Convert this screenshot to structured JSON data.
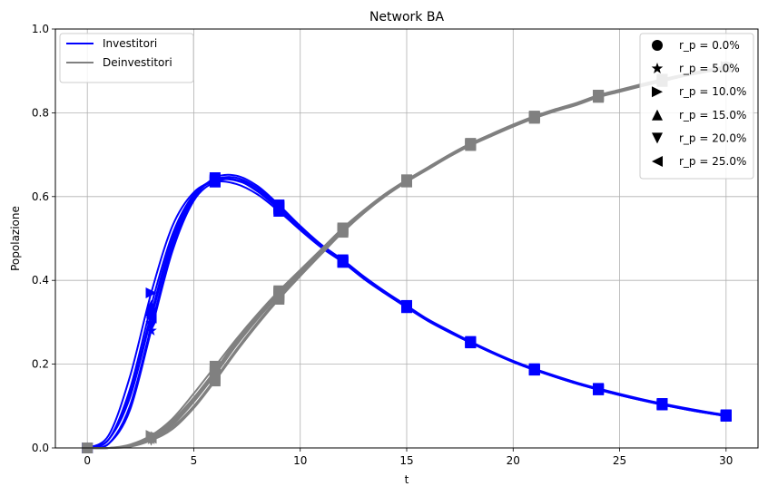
{
  "chart_data": {
    "type": "line",
    "title": "Network BA",
    "xlabel": "t",
    "ylabel": "Popolazione",
    "xlim": [
      -1.5,
      31.5
    ],
    "ylim": [
      0,
      1.0
    ],
    "xticks": [
      0,
      5,
      10,
      15,
      20,
      25,
      30
    ],
    "yticks": [
      0.0,
      0.2,
      0.4,
      0.6,
      0.8,
      1.0
    ],
    "grid": true,
    "colors": {
      "investitori": "#0000ff",
      "deinvestitori": "#808080"
    },
    "legend_lines": {
      "placement": "top-left",
      "entries": [
        {
          "label": "Investitori",
          "color": "#0000ff"
        },
        {
          "label": "Deinvestitori",
          "color": "#808080"
        }
      ]
    },
    "legend_markers": {
      "placement": "top-right",
      "entries": [
        {
          "label": "r_p = 0.0%",
          "marker": "circle"
        },
        {
          "label": "r_p = 5.0%",
          "marker": "star"
        },
        {
          "label": "r_p = 10.0%",
          "marker": "triangle-right"
        },
        {
          "label": "r_p = 15.0%",
          "marker": "triangle-up"
        },
        {
          "label": "r_p = 20.0%",
          "marker": "triangle-down"
        },
        {
          "label": "r_p = 25.0%",
          "marker": "triangle-left"
        }
      ]
    },
    "x": [
      0,
      1,
      2,
      3,
      4,
      5,
      6,
      7,
      8,
      9,
      10,
      11,
      12,
      13,
      14,
      15,
      16,
      17,
      18,
      19,
      20,
      21,
      22,
      23,
      24,
      25,
      26,
      27,
      28,
      29,
      30
    ],
    "marker_every": 3,
    "series": [
      {
        "group": "investitori",
        "marker": "circle",
        "values": [
          0.0,
          0.02,
          0.13,
          0.32,
          0.5,
          0.6,
          0.64,
          0.645,
          0.62,
          0.575,
          0.525,
          0.48,
          0.445,
          0.405,
          0.37,
          0.338,
          0.305,
          0.278,
          0.252,
          0.228,
          0.206,
          0.187,
          0.17,
          0.154,
          0.14,
          0.127,
          0.115,
          0.104,
          0.094,
          0.085,
          0.077
        ]
      },
      {
        "group": "investitori",
        "marker": "star",
        "values": [
          0.0,
          0.01,
          0.09,
          0.28,
          0.47,
          0.59,
          0.635,
          0.64,
          0.62,
          0.578,
          0.528,
          0.483,
          0.447,
          0.407,
          0.372,
          0.339,
          0.306,
          0.279,
          0.253,
          0.229,
          0.207,
          0.188,
          0.171,
          0.155,
          0.141,
          0.128,
          0.116,
          0.105,
          0.095,
          0.086,
          0.078
        ]
      },
      {
        "group": "investitori",
        "marker": "triangle-right",
        "values": [
          0.0,
          0.03,
          0.17,
          0.37,
          0.53,
          0.61,
          0.635,
          0.63,
          0.605,
          0.565,
          0.52,
          0.478,
          0.443,
          0.403,
          0.368,
          0.335,
          0.303,
          0.276,
          0.251,
          0.227,
          0.205,
          0.186,
          0.169,
          0.153,
          0.139,
          0.126,
          0.114,
          0.103,
          0.093,
          0.084,
          0.076
        ]
      },
      {
        "group": "investitori",
        "marker": "triangle-up",
        "values": [
          0.0,
          0.02,
          0.14,
          0.34,
          0.51,
          0.605,
          0.64,
          0.64,
          0.612,
          0.57,
          0.523,
          0.481,
          0.445,
          0.405,
          0.37,
          0.337,
          0.304,
          0.277,
          0.252,
          0.228,
          0.206,
          0.187,
          0.17,
          0.154,
          0.14,
          0.127,
          0.115,
          0.104,
          0.094,
          0.085,
          0.077
        ]
      },
      {
        "group": "investitori",
        "marker": "triangle-down",
        "values": [
          0.0,
          0.01,
          0.1,
          0.29,
          0.48,
          0.595,
          0.645,
          0.65,
          0.625,
          0.58,
          0.53,
          0.485,
          0.449,
          0.409,
          0.373,
          0.34,
          0.307,
          0.28,
          0.254,
          0.23,
          0.208,
          0.189,
          0.172,
          0.156,
          0.142,
          0.129,
          0.117,
          0.106,
          0.096,
          0.087,
          0.079
        ]
      },
      {
        "group": "investitori",
        "marker": "triangle-left",
        "values": [
          0.0,
          0.02,
          0.12,
          0.31,
          0.49,
          0.6,
          0.638,
          0.638,
          0.615,
          0.572,
          0.524,
          0.48,
          0.444,
          0.404,
          0.369,
          0.336,
          0.304,
          0.277,
          0.251,
          0.227,
          0.205,
          0.186,
          0.169,
          0.153,
          0.139,
          0.126,
          0.114,
          0.103,
          0.093,
          0.084,
          0.076
        ]
      },
      {
        "group": "deinvestitori",
        "marker": "circle",
        "values": [
          0.0,
          0.0,
          0.005,
          0.025,
          0.06,
          0.115,
          0.18,
          0.25,
          0.31,
          0.37,
          0.42,
          0.47,
          0.52,
          0.565,
          0.605,
          0.638,
          0.668,
          0.698,
          0.725,
          0.748,
          0.77,
          0.79,
          0.807,
          0.822,
          0.84,
          0.853,
          0.866,
          0.878,
          0.89,
          0.9,
          0.91
        ]
      },
      {
        "group": "deinvestitori",
        "marker": "star",
        "values": [
          0.0,
          0.0,
          0.004,
          0.02,
          0.05,
          0.1,
          0.165,
          0.235,
          0.3,
          0.36,
          0.415,
          0.467,
          0.518,
          0.563,
          0.603,
          0.637,
          0.667,
          0.697,
          0.724,
          0.747,
          0.769,
          0.789,
          0.806,
          0.821,
          0.839,
          0.852,
          0.865,
          0.877,
          0.889,
          0.899,
          0.909
        ]
      },
      {
        "group": "deinvestitori",
        "marker": "triangle-right",
        "values": [
          0.0,
          0.0,
          0.008,
          0.03,
          0.07,
          0.13,
          0.195,
          0.26,
          0.32,
          0.375,
          0.425,
          0.475,
          0.525,
          0.568,
          0.607,
          0.64,
          0.67,
          0.7,
          0.727,
          0.75,
          0.772,
          0.792,
          0.809,
          0.824,
          0.842,
          0.855,
          0.868,
          0.88,
          0.891,
          0.901,
          0.911
        ]
      },
      {
        "group": "deinvestitori",
        "marker": "triangle-up",
        "values": [
          0.0,
          0.0,
          0.006,
          0.027,
          0.065,
          0.12,
          0.185,
          0.255,
          0.315,
          0.372,
          0.423,
          0.472,
          0.522,
          0.566,
          0.606,
          0.639,
          0.669,
          0.699,
          0.726,
          0.749,
          0.771,
          0.791,
          0.808,
          0.823,
          0.841,
          0.854,
          0.867,
          0.879,
          0.89,
          0.9,
          0.91
        ]
      },
      {
        "group": "deinvestitori",
        "marker": "triangle-down",
        "values": [
          0.0,
          0.0,
          0.003,
          0.018,
          0.045,
          0.095,
          0.16,
          0.23,
          0.295,
          0.355,
          0.41,
          0.463,
          0.515,
          0.561,
          0.601,
          0.635,
          0.665,
          0.695,
          0.722,
          0.745,
          0.767,
          0.787,
          0.804,
          0.819,
          0.837,
          0.85,
          0.863,
          0.875,
          0.887,
          0.897,
          0.907
        ]
      },
      {
        "group": "deinvestitori",
        "marker": "triangle-left",
        "values": [
          0.0,
          0.0,
          0.005,
          0.023,
          0.055,
          0.11,
          0.175,
          0.245,
          0.308,
          0.365,
          0.418,
          0.469,
          0.52,
          0.564,
          0.604,
          0.637,
          0.667,
          0.697,
          0.724,
          0.747,
          0.769,
          0.789,
          0.806,
          0.821,
          0.839,
          0.852,
          0.865,
          0.877,
          0.889,
          0.899,
          0.909
        ]
      }
    ]
  }
}
